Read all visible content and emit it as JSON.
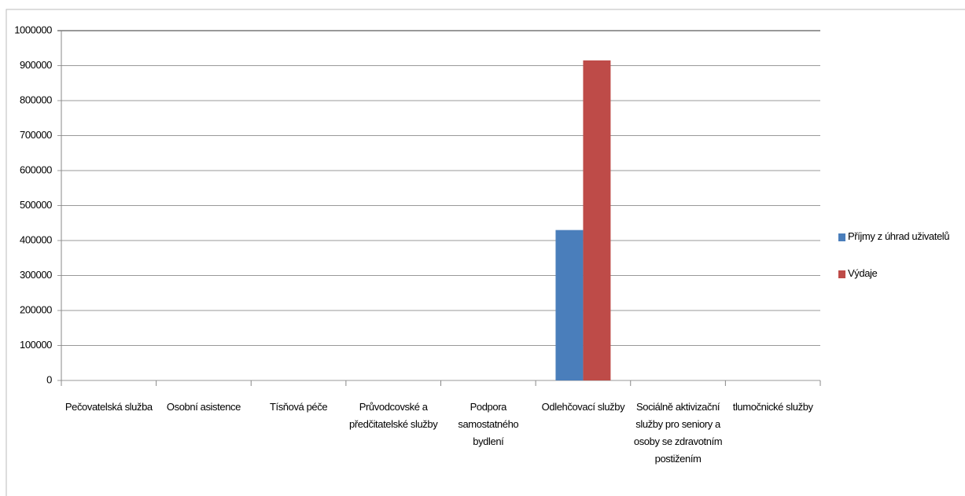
{
  "chart_data": {
    "type": "bar",
    "categories": [
      "Pečovatelská služba",
      "Osobní asistence",
      "Tísňová péče",
      "Průvodcovské a předčitatelské služby",
      "Podpora samostatného bydlení",
      "Odlehčovací služby",
      "Sociálně aktivizační služby pro seniory a osoby se zdravotním postižením",
      "tlumočnické služby"
    ],
    "series": [
      {
        "name": "Příjmy z úhrad uživatelů",
        "color": "#4a7ebb",
        "values": [
          0,
          0,
          0,
          0,
          0,
          430000,
          0,
          0
        ]
      },
      {
        "name": "Výdaje",
        "color": "#be4b48",
        "values": [
          0,
          0,
          0,
          0,
          0,
          915000,
          0,
          0
        ]
      }
    ],
    "ylim": [
      0,
      1000000
    ],
    "yticks": [
      0,
      100000,
      200000,
      300000,
      400000,
      500000,
      600000,
      700000,
      800000,
      900000,
      1000000
    ],
    "grid": true,
    "legend": "right"
  }
}
